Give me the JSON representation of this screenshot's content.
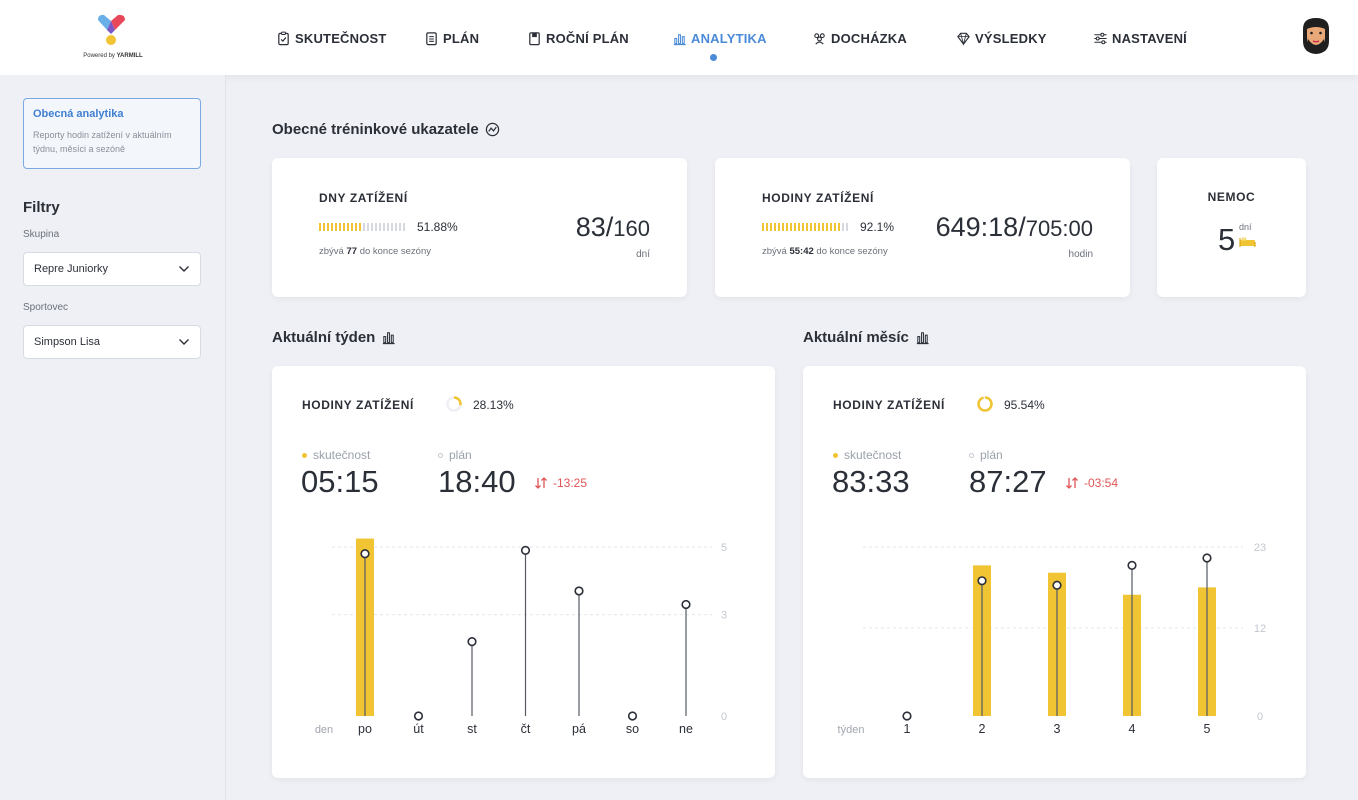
{
  "brand": {
    "powered_by": "Powered by",
    "name": "YARMILL"
  },
  "nav": {
    "items": [
      {
        "key": "skutecnost",
        "label": "SKUTEČNOST",
        "icon": "clipboard-check-icon"
      },
      {
        "key": "plan",
        "label": "PLÁN",
        "icon": "notepad-icon"
      },
      {
        "key": "rocni",
        "label": "ROČNÍ PLÁN",
        "icon": "book-icon"
      },
      {
        "key": "analytika",
        "label": "ANALYTIKA",
        "icon": "bar-chart-icon",
        "active": true
      },
      {
        "key": "dochazka",
        "label": "DOCHÁZKA",
        "icon": "people-icon"
      },
      {
        "key": "vysledky",
        "label": "VÝSLEDKY",
        "icon": "diamond-icon"
      },
      {
        "key": "nastaveni",
        "label": "NASTAVENÍ",
        "icon": "sliders-icon"
      }
    ]
  },
  "sidebar": {
    "card": {
      "title": "Obecná analytika",
      "description": "Reporty hodin zatížení v aktuálním týdnu, měsíci a sezóně"
    },
    "filters_title": "Filtry",
    "group_label": "Skupina",
    "group_value": "Repre Juniorky",
    "athlete_label": "Sportovec",
    "athlete_value": "Simpson Lisa"
  },
  "overview": {
    "title": "Obecné tréninkové ukazatele",
    "days": {
      "label": "DNY ZATÍŽENÍ",
      "pct": "51.88%",
      "fill": 0.5188,
      "remaining_prefix": "zbývá",
      "remaining_value": "77",
      "remaining_suffix": "do konce sezóny",
      "value": "83",
      "total": "160",
      "unit": "dní"
    },
    "hours": {
      "label": "HODINY ZATÍŽENÍ",
      "pct": "92.1%",
      "fill": 0.921,
      "remaining_prefix": "zbývá",
      "remaining_value": "55:42",
      "remaining_suffix": "do konce sezóny",
      "value": "649:18",
      "total": "705:00",
      "unit": "hodin"
    },
    "illness": {
      "label": "NEMOC",
      "value": "5",
      "unit": "dní"
    }
  },
  "week": {
    "title": "Aktuální týden",
    "head": "HODINY ZATÍŽENÍ",
    "pct": "28.13%",
    "ring_fill": 0.2813,
    "actual_label": "skutečnost",
    "actual": "05:15",
    "plan_label": "plán",
    "plan": "18:40",
    "diff": "-13:25"
  },
  "month": {
    "title": "Aktuální měsíc",
    "head": "HODINY ZATÍŽENÍ",
    "pct": "95.54%",
    "ring_fill": 0.9554,
    "actual_label": "skutečnost",
    "actual": "83:33",
    "plan_label": "plán",
    "plan": "87:27",
    "diff": "-03:54"
  },
  "colors": {
    "accent": "#4a8ad8",
    "bar": "#f0c433",
    "negative": "#e05555"
  },
  "chart_data": [
    {
      "type": "bar",
      "x_title": "den",
      "categories": [
        "po",
        "út",
        "st",
        "čt",
        "pá",
        "so",
        "ne"
      ],
      "ylim": [
        0,
        5
      ],
      "yticks": [
        0,
        3,
        5
      ],
      "grid": true,
      "series": [
        {
          "name": "skutečnost",
          "values": [
            5.25,
            0,
            0,
            0,
            0,
            0,
            0
          ]
        },
        {
          "name": "plán",
          "values": [
            4.8,
            0,
            2.2,
            4.9,
            3.7,
            0,
            3.3
          ]
        }
      ]
    },
    {
      "type": "bar",
      "x_title": "týden",
      "categories": [
        "1",
        "2",
        "3",
        "4",
        "5"
      ],
      "ylim": [
        0,
        23
      ],
      "yticks": [
        0,
        12,
        23
      ],
      "grid": true,
      "series": [
        {
          "name": "skutečnost",
          "values": [
            0,
            20.5,
            19.5,
            16.5,
            17.5
          ]
        },
        {
          "name": "plán",
          "values": [
            0,
            18.4,
            17.8,
            20.5,
            21.5
          ]
        }
      ]
    }
  ]
}
